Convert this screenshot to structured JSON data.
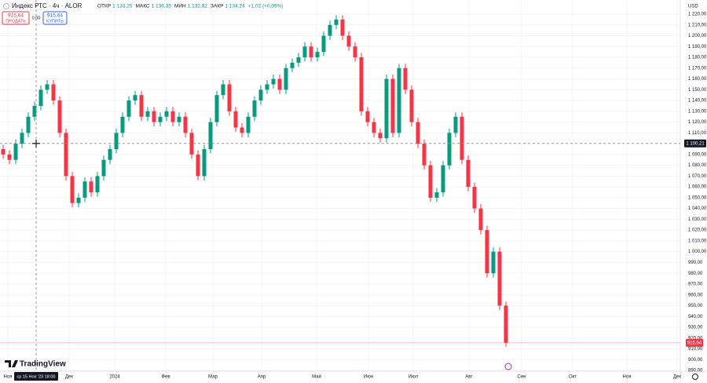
{
  "chart_data": {
    "type": "candlestick",
    "title": "Индекс РТС · 4ч · ALOR",
    "ohlc_legend": [
      {
        "label": "ОТКР",
        "value": "1 133,25"
      },
      {
        "label": "МАКС",
        "value": "1 136,35"
      },
      {
        "label": "МИН",
        "value": "1 132,82"
      },
      {
        "label": "ЗАКР",
        "value": "1 134,24"
      }
    ],
    "change": "+1,02 (+0,09%)",
    "sell": {
      "price": "915,64",
      "label": "ПРОДАТЬ"
    },
    "spread": "0.00",
    "buy": {
      "price": "915,64",
      "label": "КУПИТЬ"
    },
    "currency": "USD",
    "logo": "TradingView",
    "x_labels": [
      "Ноя",
      "Дек",
      "2024",
      "Фев",
      "Мар",
      "Апр",
      "Май",
      "Июн",
      "Июл",
      "Авг",
      "Сен",
      "Окт",
      "Ноя",
      "Дек"
    ],
    "up_color": "#089981",
    "down_color": "#f23645",
    "open": [
      1095,
      1090,
      1085,
      1100,
      1110,
      1125,
      1135,
      1150,
      1155,
      1140,
      1110,
      1070,
      1045,
      1050,
      1065,
      1055,
      1070,
      1085,
      1095,
      1110,
      1125,
      1140,
      1145,
      1125,
      1130,
      1120,
      1125,
      1130,
      1120,
      1125,
      1110,
      1090,
      1070,
      1095,
      1120,
      1145,
      1155,
      1130,
      1115,
      1110,
      1125,
      1140,
      1150,
      1155,
      1160,
      1150,
      1170,
      1175,
      1180,
      1190,
      1180,
      1185,
      1200,
      1210,
      1215,
      1200,
      1190,
      1180,
      1130,
      1120,
      1110,
      1105,
      1160,
      1110,
      1170,
      1150,
      1120,
      1100,
      1080,
      1050,
      1055,
      1080,
      1110,
      1125,
      1085,
      1060,
      1040,
      1020,
      980,
      1000,
      950
    ],
    "high": [
      1099,
      1094,
      1104,
      1114,
      1129,
      1139,
      1154,
      1159,
      1159,
      1144,
      1114,
      1074,
      1054,
      1069,
      1069,
      1074,
      1089,
      1099,
      1114,
      1129,
      1144,
      1149,
      1149,
      1134,
      1134,
      1129,
      1134,
      1134,
      1129,
      1129,
      1114,
      1094,
      1099,
      1124,
      1149,
      1159,
      1159,
      1134,
      1119,
      1129,
      1144,
      1154,
      1159,
      1164,
      1164,
      1174,
      1179,
      1184,
      1194,
      1194,
      1189,
      1204,
      1214,
      1219,
      1219,
      1204,
      1194,
      1184,
      1134,
      1124,
      1114,
      1164,
      1164,
      1174,
      1174,
      1154,
      1124,
      1104,
      1084,
      1059,
      1084,
      1114,
      1129,
      1129,
      1089,
      1064,
      1044,
      1024,
      1004,
      1004,
      954
    ],
    "low": [
      1086,
      1081,
      1081,
      1096,
      1106,
      1121,
      1131,
      1146,
      1136,
      1106,
      1066,
      1041,
      1041,
      1046,
      1051,
      1051,
      1066,
      1081,
      1091,
      1106,
      1121,
      1136,
      1121,
      1121,
      1116,
      1116,
      1121,
      1116,
      1116,
      1106,
      1086,
      1066,
      1066,
      1091,
      1116,
      1141,
      1126,
      1111,
      1106,
      1106,
      1121,
      1136,
      1146,
      1151,
      1146,
      1146,
      1166,
      1171,
      1176,
      1176,
      1176,
      1181,
      1196,
      1206,
      1196,
      1186,
      1176,
      1126,
      1116,
      1106,
      1101,
      1101,
      1106,
      1106,
      1146,
      1116,
      1096,
      1076,
      1046,
      1046,
      1051,
      1076,
      1106,
      1081,
      1056,
      1036,
      1016,
      976,
      976,
      946,
      912
    ],
    "close": [
      1090,
      1085,
      1100,
      1110,
      1125,
      1135,
      1150,
      1155,
      1140,
      1110,
      1070,
      1045,
      1050,
      1065,
      1055,
      1070,
      1085,
      1095,
      1110,
      1125,
      1140,
      1145,
      1125,
      1130,
      1120,
      1125,
      1130,
      1120,
      1125,
      1110,
      1090,
      1070,
      1095,
      1120,
      1145,
      1155,
      1130,
      1115,
      1110,
      1125,
      1140,
      1150,
      1155,
      1160,
      1150,
      1170,
      1175,
      1180,
      1190,
      1180,
      1185,
      1200,
      1210,
      1215,
      1200,
      1190,
      1180,
      1130,
      1120,
      1110,
      1105,
      1160,
      1110,
      1170,
      1150,
      1120,
      1100,
      1080,
      1050,
      1055,
      1080,
      1110,
      1125,
      1085,
      1060,
      1040,
      1020,
      980,
      1000,
      950,
      915.64
    ],
    "ylim": [
      890,
      1220
    ],
    "yticks": [
      {
        "value": 890,
        "label": "890,00"
      },
      {
        "value": 900,
        "label": "900,00"
      },
      {
        "value": 910,
        "label": "910,00"
      },
      {
        "value": 920,
        "label": "920,00"
      },
      {
        "value": 930,
        "label": "930,00"
      },
      {
        "value": 940,
        "label": "940,00"
      },
      {
        "value": 950,
        "label": "950,00"
      },
      {
        "value": 960,
        "label": "960,00"
      },
      {
        "value": 970,
        "label": "970,00"
      },
      {
        "value": 980,
        "label": "980,00"
      },
      {
        "value": 990,
        "label": "990,00"
      },
      {
        "value": 1000,
        "label": "1 000,00"
      },
      {
        "value": 1010,
        "label": "1 010,00"
      },
      {
        "value": 1020,
        "label": "1 020,00"
      },
      {
        "value": 1030,
        "label": "1 030,00"
      },
      {
        "value": 1040,
        "label": "1 040,00"
      },
      {
        "value": 1050,
        "label": "1 050,00"
      },
      {
        "value": 1060,
        "label": "1 060,00"
      },
      {
        "value": 1070,
        "label": "1 070,00"
      },
      {
        "value": 1080,
        "label": "1 080,00"
      },
      {
        "value": 1090,
        "label": "1 090,00"
      },
      {
        "value": 1100,
        "label": "1 100,00"
      },
      {
        "value": 1110,
        "label": "1 110,00"
      },
      {
        "value": 1120,
        "label": "1 120,00"
      },
      {
        "value": 1130,
        "label": "1 130,00"
      },
      {
        "value": 1140,
        "label": "1 140,00"
      },
      {
        "value": 1150,
        "label": "1 150,00"
      },
      {
        "value": 1160,
        "label": "1 160,00"
      },
      {
        "value": 1170,
        "label": "1 170,00"
      },
      {
        "value": 1180,
        "label": "1 180,00"
      },
      {
        "value": 1190,
        "label": "1 190,00"
      },
      {
        "value": 1200,
        "label": "1 200,00"
      },
      {
        "value": 1210,
        "label": "1 210,00"
      },
      {
        "value": 1220,
        "label": "1 220,00"
      }
    ],
    "grid": true,
    "crosshair": {
      "price": {
        "value": 1100.21,
        "label": "1 100,21"
      },
      "time_label": "ср 15 Ноя '23 18:00"
    },
    "last_price": {
      "value": 915.64,
      "label": "915,64"
    }
  }
}
